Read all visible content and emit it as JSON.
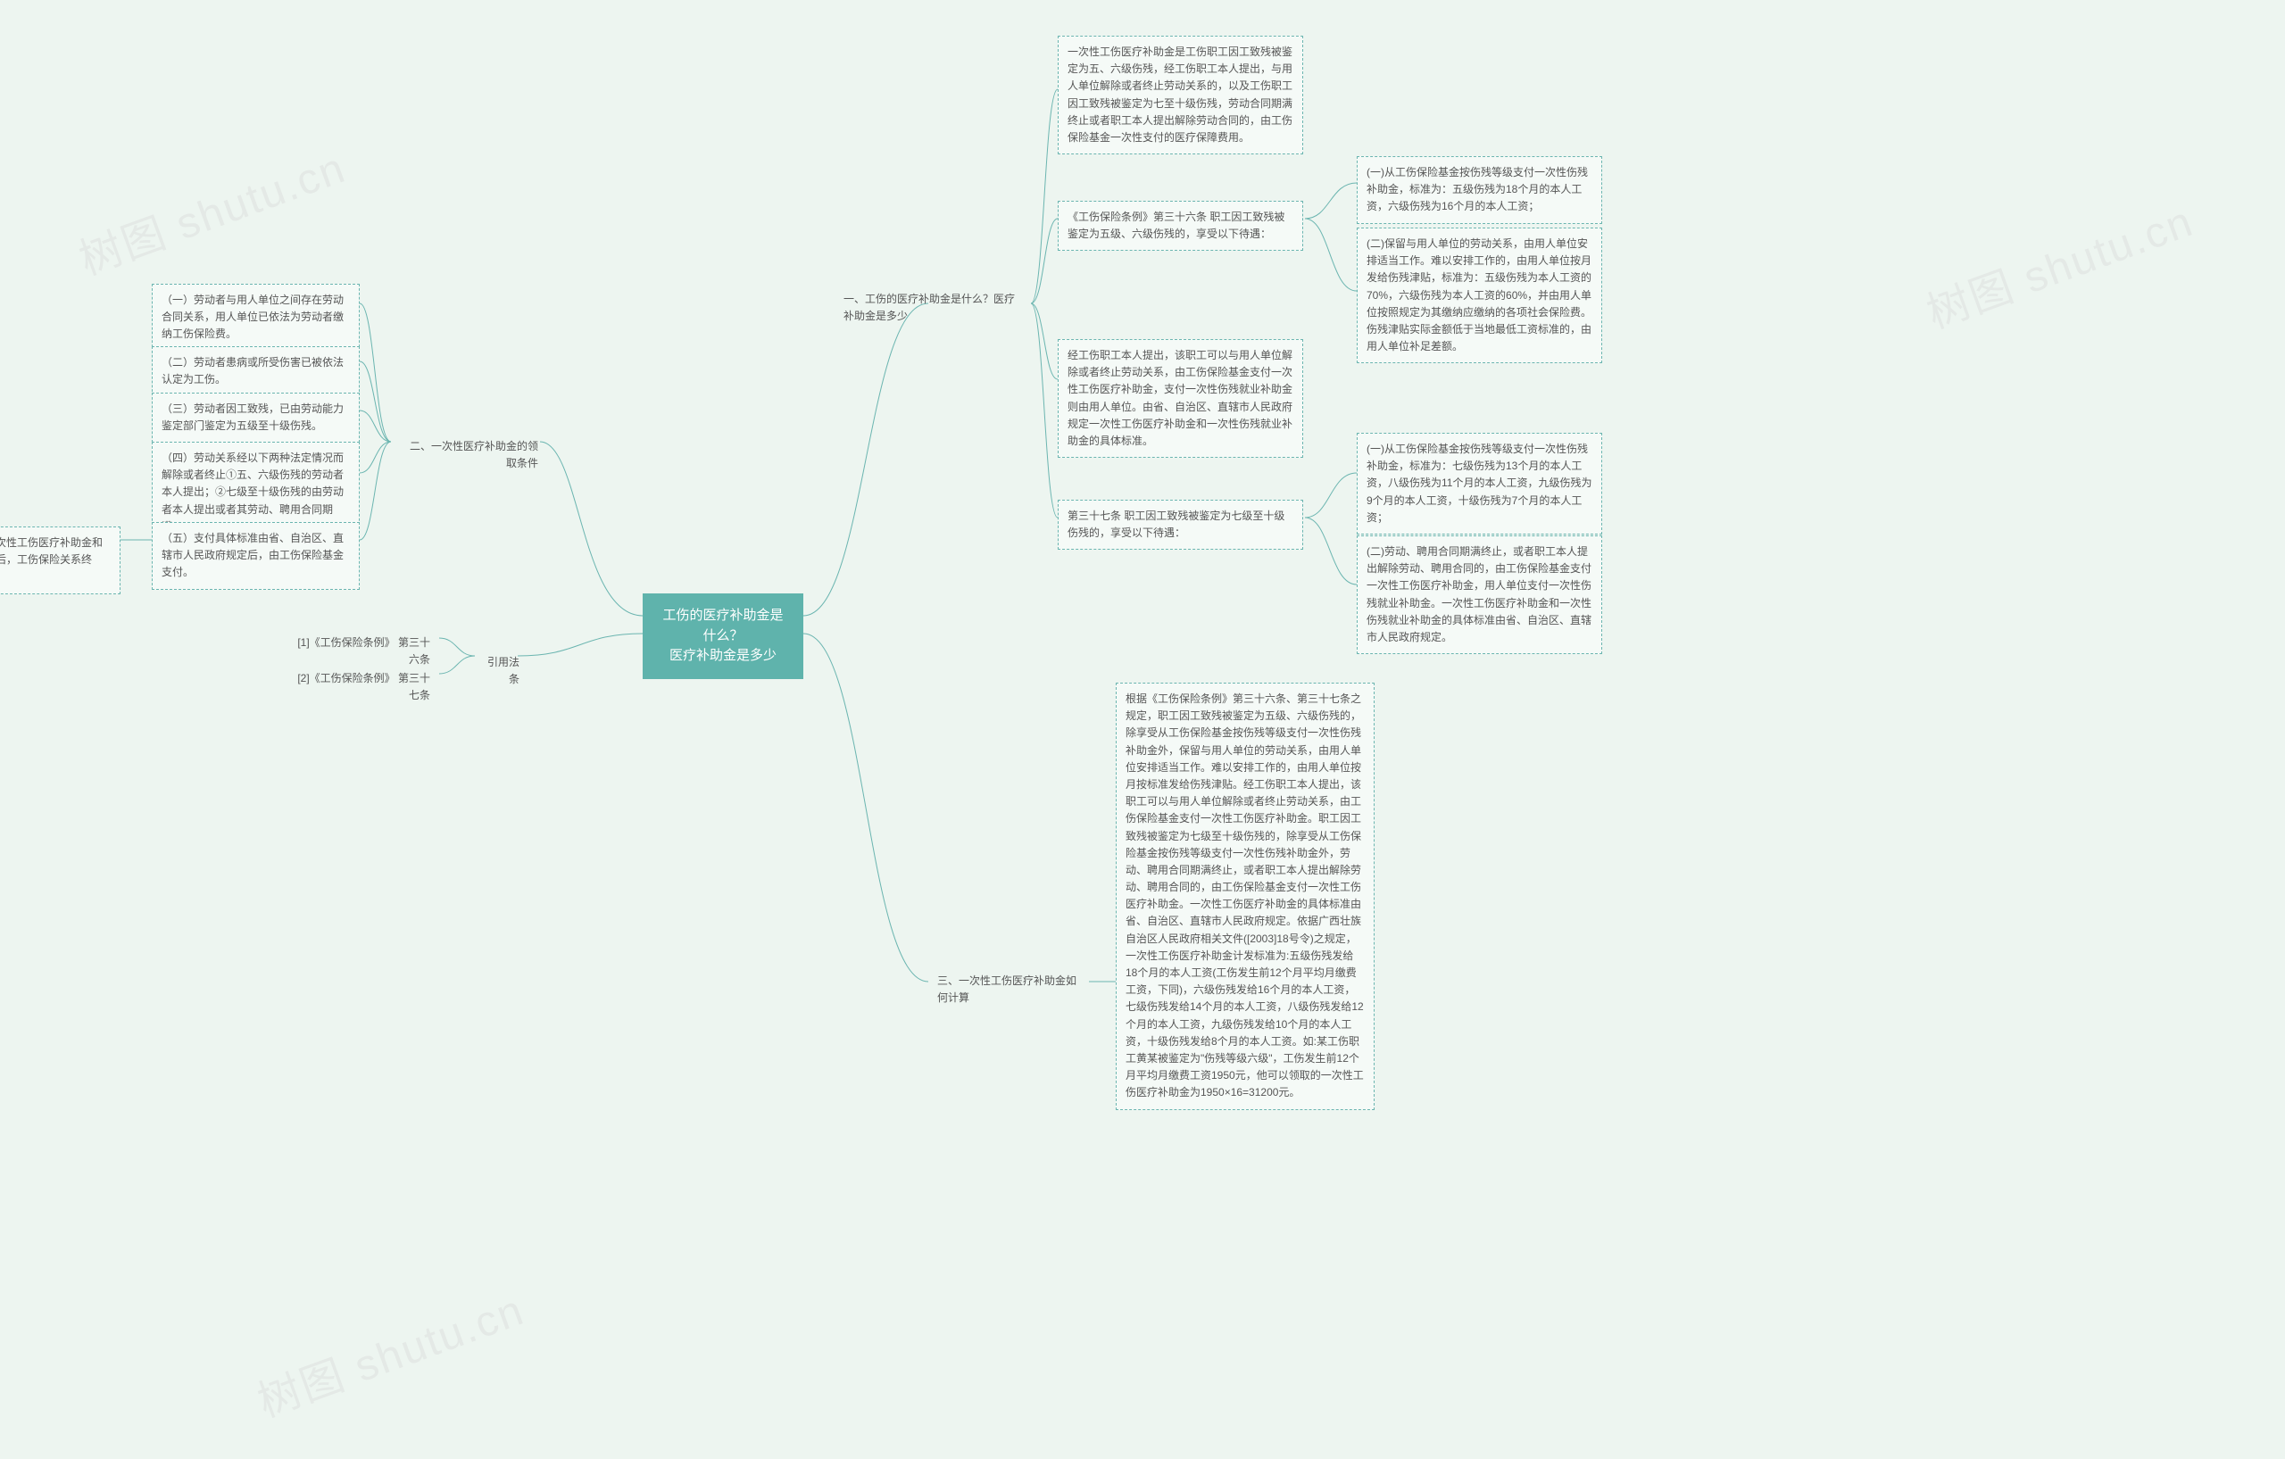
{
  "diagram": {
    "type": "mindmap",
    "background_color": "#edf5f0",
    "connector_color": "#6bb5b0",
    "node_border_color": "#6bb5b0",
    "node_border_style": "dashed",
    "node_bg_color": "#f5faf7",
    "node_text_color": "#555555",
    "root_bg_color": "#5fb3ac",
    "root_text_color": "#ffffff",
    "font_family": "Microsoft YaHei",
    "node_fontsize": 12,
    "root_fontsize": 15,
    "watermarks": [
      "树图 shutu.cn",
      "树图 shutu.cn",
      "树图 shutu.cn"
    ],
    "root": {
      "text": "工伤的医疗补助金是什么？\n医疗补助金是多少"
    },
    "right_branches": [
      {
        "label": "一、工伤的医疗补助金是什么？医疗补助金是多少",
        "children": [
          {
            "text": "一次性工伤医疗补助金是工伤职工因工致残被鉴定为五、六级伤残，经工伤职工本人提出，与用人单位解除或者终止劳动关系的，以及工伤职工因工致残被鉴定为七至十级伤残，劳动合同期满终止或者职工本人提出解除劳动合同的，由工伤保险基金一次性支付的医疗保障费用。"
          },
          {
            "text": "《工伤保险条例》第三十六条 职工因工致残被鉴定为五级、六级伤残的，享受以下待遇：",
            "children": [
              {
                "text": "(一)从工伤保险基金按伤残等级支付一次性伤残补助金，标准为：五级伤残为18个月的本人工资，六级伤残为16个月的本人工资；"
              },
              {
                "text": "(二)保留与用人单位的劳动关系，由用人单位安排适当工作。难以安排工作的，由用人单位按月发给伤残津贴，标准为：五级伤残为本人工资的70%，六级伤残为本人工资的60%，并由用人单位按照规定为其缴纳应缴纳的各项社会保险费。伤残津贴实际金额低于当地最低工资标准的，由用人单位补足差额。"
              }
            ]
          },
          {
            "text": "经工伤职工本人提出，该职工可以与用人单位解除或者终止劳动关系，由工伤保险基金支付一次性工伤医疗补助金，支付一次性伤残就业补助金则由用人单位。由省、自治区、直辖市人民政府规定一次性工伤医疗补助金和一次性伤残就业补助金的具体标准。"
          },
          {
            "text": "第三十七条 职工因工致残被鉴定为七级至十级伤残的，享受以下待遇：",
            "children": [
              {
                "text": "(一)从工伤保险基金按伤残等级支付一次性伤残补助金，标准为：七级伤残为13个月的本人工资，八级伤残为11个月的本人工资，九级伤残为9个月的本人工资，十级伤残为7个月的本人工资；"
              },
              {
                "text": "(二)劳动、聘用合同期满终止，或者职工本人提出解除劳动、聘用合同的，由工伤保险基金支付一次性工伤医疗补助金，用人单位支付一次性伤残就业补助金。一次性工伤医疗补助金和一次性伤残就业补助金的具体标准由省、自治区、直辖市人民政府规定。"
              }
            ]
          }
        ]
      },
      {
        "label": "三、一次性工伤医疗补助金如何计算",
        "children": [
          {
            "text": "根据《工伤保险条例》第三十六条、第三十七条之规定，职工因工致残被鉴定为五级、六级伤残的，除享受从工伤保险基金按伤残等级支付一次性伤残补助金外，保留与用人单位的劳动关系，由用人单位安排适当工作。难以安排工作的，由用人单位按月按标准发给伤残津贴。经工伤职工本人提出，该职工可以与用人单位解除或者终止劳动关系，由工伤保险基金支付一次性工伤医疗补助金。职工因工致残被鉴定为七级至十级伤残的，除享受从工伤保险基金按伤残等级支付一次性伤残补助金外，劳动、聘用合同期满终止，或者职工本人提出解除劳动、聘用合同的，由工伤保险基金支付一次性工伤医疗补助金。一次性工伤医疗补助金的具体标准由省、自治区、直辖市人民政府规定。依据广西壮族自治区人民政府相关文件([2003]18号令)之规定，一次性工伤医疗补助金计发标准为:五级伤残发给18个月的本人工资(工伤发生前12个月平均月缴费工资，下同)，六级伤残发给16个月的本人工资，七级伤残发给14个月的本人工资，八级伤残发给12个月的本人工资，九级伤残发给10个月的本人工资，十级伤残发给8个月的本人工资。如:某工伤职工黄某被鉴定为\"伤残等级六级\"，工伤发生前12个月平均月缴费工资1950元，他可以领取的一次性工伤医疗补助金为1950×16=31200元。"
          }
        ]
      }
    ],
    "left_branches": [
      {
        "label": "二、一次性医疗补助金的领取条件",
        "children": [
          {
            "text": "（一）劳动者与用人单位之间存在劳动合同关系，用人单位已依法为劳动者缴纳工伤保险费。"
          },
          {
            "text": "（二）劳动者患病或所受伤害已被依法认定为工伤。"
          },
          {
            "text": "（三）劳动者因工致残，已由劳动能力鉴定部门鉴定为五级至十级伤残。"
          },
          {
            "text": "（四）劳动关系经以下两种法定情况而解除或者终止①五、六级伤残的劳动者本人提出；②七级至十级伤残的由劳动者本人提出或者其劳动、聘用合同期满。"
          },
          {
            "text": "（五）支付具体标准由省、自治区、直辖市人民政府规定后，由工伤保险基金支付。",
            "children": [
              {
                "text": "工伤职工领取一次性工伤医疗补助金和伤残就业补助金后，工伤保险关系终止。"
              }
            ]
          }
        ]
      },
      {
        "label": "引用法条",
        "children": [
          {
            "text": "[1]《工伤保险条例》 第三十六条"
          },
          {
            "text": "[2]《工伤保险条例》 第三十七条"
          }
        ]
      }
    ]
  }
}
